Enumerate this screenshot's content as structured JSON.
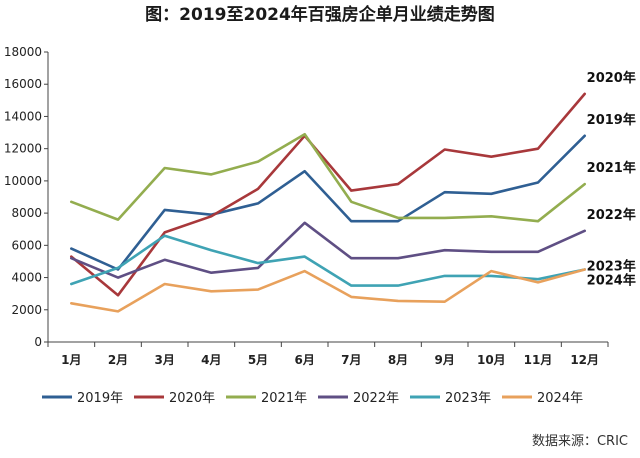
{
  "chart_data": {
    "type": "line",
    "title": "图：2019至2024年百强房企单月业绩走势图",
    "source": "数据来源：CRIC",
    "categories": [
      "1月",
      "2月",
      "3月",
      "4月",
      "5月",
      "6月",
      "7月",
      "8月",
      "9月",
      "10月",
      "11月",
      "12月"
    ],
    "ylim": [
      0,
      18000
    ],
    "yticks": [
      0,
      2000,
      4000,
      6000,
      8000,
      10000,
      12000,
      14000,
      16000,
      18000
    ],
    "grid": false,
    "legend_position": "bottom",
    "series": [
      {
        "name": "2019年",
        "color": "#2f5f93",
        "values": [
          5800,
          4500,
          8200,
          7900,
          8600,
          10600,
          7500,
          7500,
          9300,
          9200,
          9900,
          12800
        ]
      },
      {
        "name": "2020年",
        "color": "#a8383b",
        "values": [
          5300,
          2900,
          6800,
          7800,
          9500,
          12800,
          9400,
          9800,
          11950,
          11500,
          12000,
          15400
        ]
      },
      {
        "name": "2021年",
        "color": "#93ad4f",
        "values": [
          8700,
          7600,
          10800,
          10400,
          11200,
          12900,
          8700,
          7700,
          7700,
          7800,
          7500,
          9800
        ]
      },
      {
        "name": "2022年",
        "color": "#5f4f84",
        "values": [
          5200,
          4000,
          5100,
          4300,
          4600,
          7400,
          5200,
          5200,
          5700,
          5600,
          5600,
          6900
        ]
      },
      {
        "name": "2023年",
        "color": "#3fa3b4",
        "values": [
          3600,
          4600,
          6600,
          5700,
          4900,
          5300,
          3500,
          3500,
          4100,
          4100,
          3900,
          4500
        ]
      },
      {
        "name": "2024年",
        "color": "#e8a15c",
        "values": [
          2400,
          1900,
          3600,
          3150,
          3250,
          4400,
          2800,
          2550,
          2500,
          4400,
          3700,
          4500
        ]
      }
    ]
  }
}
